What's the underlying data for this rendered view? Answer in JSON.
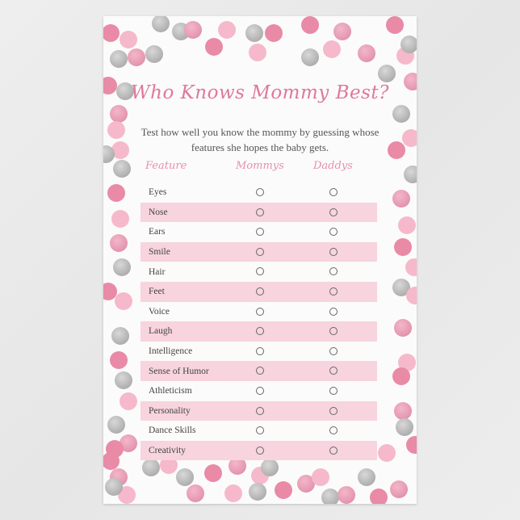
{
  "title": "Who Knows Mommy Best?",
  "intro": "Test how well you know the mommy by guessing whose features she hopes the baby gets.",
  "columns": [
    "Feature",
    "Mommys",
    "Daddys"
  ],
  "rows": [
    {
      "feature": "Eyes"
    },
    {
      "feature": "Nose"
    },
    {
      "feature": "Ears"
    },
    {
      "feature": "Smile"
    },
    {
      "feature": "Hair"
    },
    {
      "feature": "Feet"
    },
    {
      "feature": "Voice"
    },
    {
      "feature": "Laugh"
    },
    {
      "feature": "Intelligence"
    },
    {
      "feature": "Sense of Humor"
    },
    {
      "feature": "Athleticism"
    },
    {
      "feature": "Personality"
    },
    {
      "feature": "Dance Skills"
    },
    {
      "feature": "Creativity"
    }
  ],
  "colors": {
    "accent": "#e0789a",
    "stripe": "#f7d4de",
    "pink": "#e98aa7",
    "light_pink": "#f5b9cb",
    "silver": "#b5b5b5",
    "glitter_pink": "#e69ab3"
  }
}
